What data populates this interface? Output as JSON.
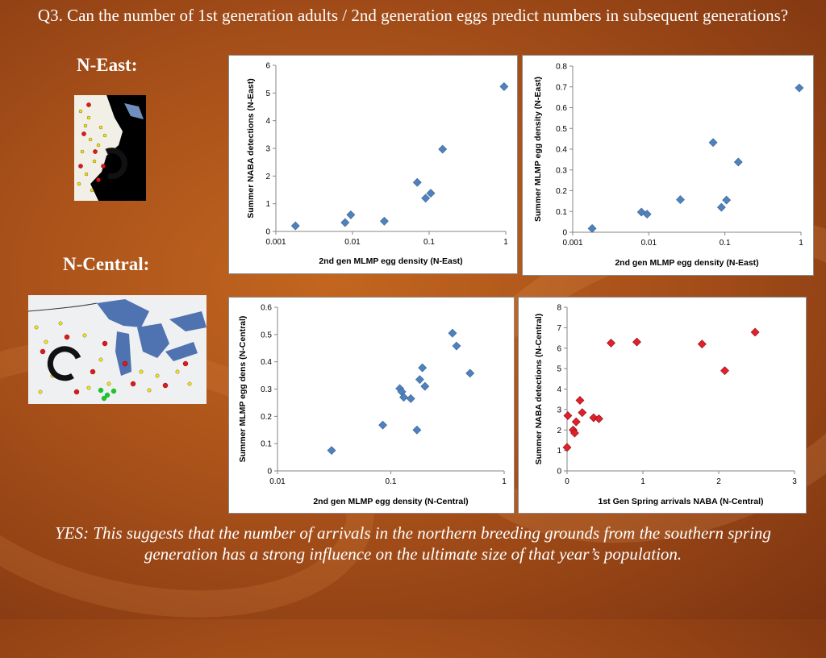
{
  "title": "Q3. Can the number of 1st generation adults / 2nd generation eggs predict numbers in subsequent generations?",
  "regions": {
    "north_east": "N-East:",
    "north_central": "N-Central:"
  },
  "conclusion": "YES:  This suggests that the number of arrivals in the northern breeding grounds from the southern spring generation has a strong influence on the ultimate size of that year’s population.",
  "colors": {
    "blue_marker": "#4f81bd",
    "red_marker": "#e0202a",
    "background": "#a9511a"
  },
  "chart_data": [
    {
      "id": "chart1",
      "type": "scatter",
      "xscale": "log",
      "xlabel": "2nd gen MLMP egg density (N-East)",
      "ylabel": "Summer NABA detections (N-East)",
      "xlim": [
        0.001,
        1
      ],
      "ylim": [
        0,
        6
      ],
      "xticks": [
        0.001,
        0.01,
        0.1,
        1
      ],
      "xtick_labels": [
        "0.001",
        "0.01",
        "0.1",
        "1"
      ],
      "yticks": [
        0,
        1,
        2,
        3,
        4,
        5,
        6
      ],
      "ytick_labels": [
        "0",
        "1",
        "2",
        "3",
        "4",
        "5",
        "6"
      ],
      "marker": "diamond",
      "color": "#4f81bd",
      "points": [
        [
          0.0018,
          0.2
        ],
        [
          0.008,
          0.32
        ],
        [
          0.0095,
          0.6
        ],
        [
          0.026,
          0.37
        ],
        [
          0.07,
          1.77
        ],
        [
          0.09,
          1.2
        ],
        [
          0.105,
          1.38
        ],
        [
          0.15,
          2.97
        ],
        [
          0.95,
          5.23
        ]
      ]
    },
    {
      "id": "chart2",
      "type": "scatter",
      "xscale": "log",
      "xlabel": "2nd gen MLMP egg density (N-East)",
      "ylabel": "Summer MLMP egg density (N-East)",
      "xlim": [
        0.001,
        1
      ],
      "ylim": [
        0,
        0.8
      ],
      "xticks": [
        0.001,
        0.01,
        0.1,
        1
      ],
      "xtick_labels": [
        "0.001",
        "0.01",
        "0.1",
        "1"
      ],
      "yticks": [
        0,
        0.1,
        0.2,
        0.3,
        0.4,
        0.5,
        0.6,
        0.7,
        0.8
      ],
      "ytick_labels": [
        "0",
        "0.1",
        "0.2",
        "0.3",
        "0.4",
        "0.5",
        "0.6",
        "0.7",
        "0.8"
      ],
      "marker": "diamond",
      "color": "#4f81bd",
      "points": [
        [
          0.0018,
          0.018
        ],
        [
          0.008,
          0.097
        ],
        [
          0.0095,
          0.087
        ],
        [
          0.026,
          0.157
        ],
        [
          0.07,
          0.432
        ],
        [
          0.09,
          0.12
        ],
        [
          0.105,
          0.155
        ],
        [
          0.15,
          0.338
        ],
        [
          0.95,
          0.695
        ]
      ]
    },
    {
      "id": "chart3",
      "type": "scatter",
      "xscale": "log",
      "xlabel": "2nd gen MLMP egg density (N-Central)",
      "ylabel": "Summer MLMP egg dens (N-Central)",
      "xlim": [
        0.01,
        1
      ],
      "ylim": [
        0,
        0.6
      ],
      "xticks": [
        0.01,
        0.1,
        1
      ],
      "xtick_labels": [
        "0.01",
        "0.1",
        "1"
      ],
      "yticks": [
        0,
        0.1,
        0.2,
        0.3,
        0.4,
        0.5,
        0.6
      ],
      "ytick_labels": [
        "0",
        "0.1",
        "0.2",
        "0.3",
        "0.4",
        "0.5",
        "0.6"
      ],
      "marker": "diamond",
      "color": "#4f81bd",
      "points": [
        [
          0.03,
          0.075
        ],
        [
          0.085,
          0.168
        ],
        [
          0.12,
          0.302
        ],
        [
          0.125,
          0.29
        ],
        [
          0.13,
          0.27
        ],
        [
          0.15,
          0.265
        ],
        [
          0.17,
          0.15
        ],
        [
          0.18,
          0.335
        ],
        [
          0.19,
          0.378
        ],
        [
          0.2,
          0.31
        ],
        [
          0.35,
          0.505
        ],
        [
          0.38,
          0.458
        ],
        [
          0.5,
          0.358
        ]
      ]
    },
    {
      "id": "chart4",
      "type": "scatter",
      "xscale": "linear",
      "xlabel": "1st Gen Spring arrivals NABA (N-Central)",
      "ylabel": "Summer NABA detections (N-Central)",
      "xlim": [
        0,
        3
      ],
      "ylim": [
        0,
        8
      ],
      "xticks": [
        0,
        1,
        2,
        3
      ],
      "xtick_labels": [
        "0",
        "1",
        "2",
        "3"
      ],
      "yticks": [
        0,
        1,
        2,
        3,
        4,
        5,
        6,
        7,
        8
      ],
      "ytick_labels": [
        "0",
        "1",
        "2",
        "3",
        "4",
        "5",
        "6",
        "7",
        "8"
      ],
      "marker": "diamond",
      "color": "#e0202a",
      "points": [
        [
          0.0,
          1.15
        ],
        [
          0.01,
          2.7
        ],
        [
          0.08,
          2.0
        ],
        [
          0.1,
          1.85
        ],
        [
          0.12,
          2.4
        ],
        [
          0.17,
          3.45
        ],
        [
          0.2,
          2.85
        ],
        [
          0.35,
          2.6
        ],
        [
          0.42,
          2.55
        ],
        [
          0.58,
          6.25
        ],
        [
          0.92,
          6.3
        ],
        [
          1.78,
          6.2
        ],
        [
          2.08,
          4.9
        ],
        [
          2.48,
          6.78
        ]
      ]
    }
  ]
}
